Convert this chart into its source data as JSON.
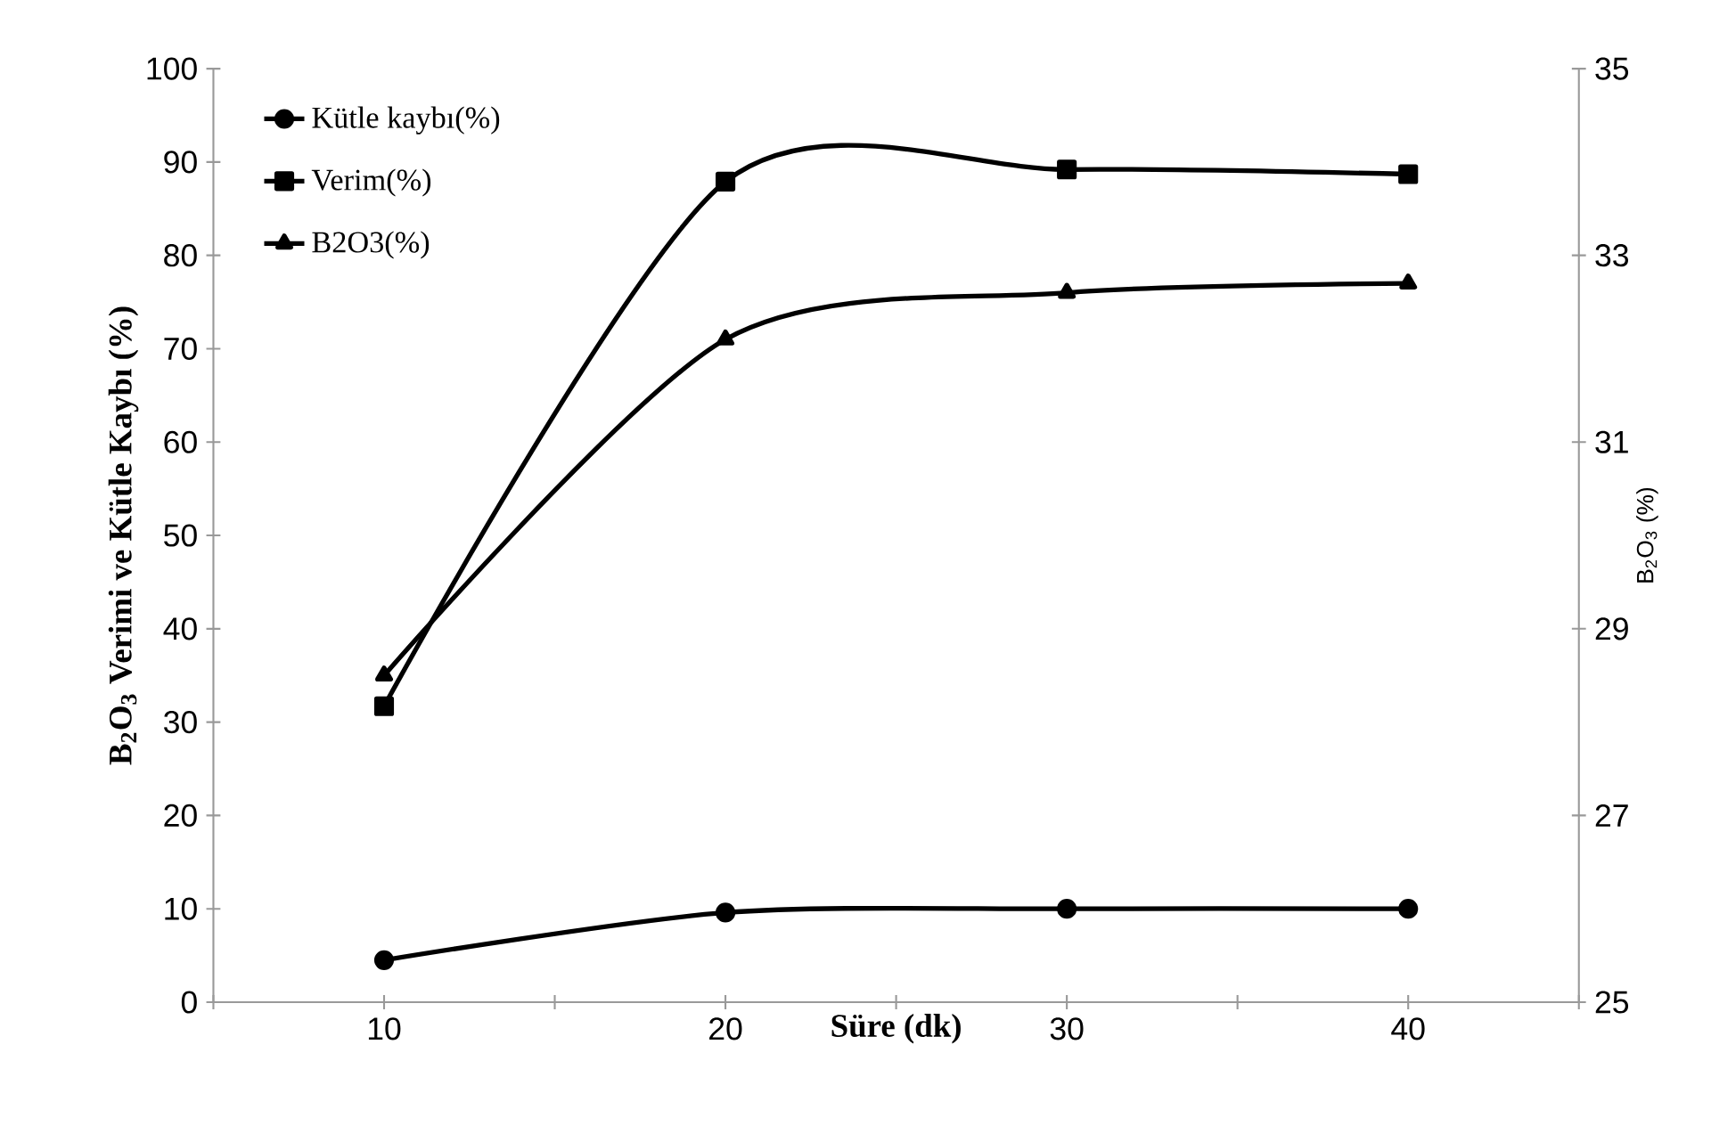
{
  "chart_data": {
    "type": "line",
    "xlabel": "Süre (dk)",
    "ylabel": "B$_{2}$O$_{3}$  Verimi ve Kütle Kaybı (%)",
    "y2label": "B$_{2}$O$_{3}$  (%)",
    "x": [
      10,
      20,
      30,
      40
    ],
    "xlim": [
      5,
      45
    ],
    "xticks": [
      {
        "value": 5,
        "label": null
      },
      10,
      {
        "value": 15,
        "label": null
      },
      20,
      {
        "value": 25,
        "label": null
      },
      30,
      {
        "value": 35,
        "label": null
      },
      40,
      {
        "value": 45,
        "label": null
      }
    ],
    "ylim": [
      0,
      100
    ],
    "yticks": [
      0,
      10,
      20,
      30,
      40,
      50,
      60,
      70,
      80,
      90,
      100
    ],
    "y2lim": [
      25,
      35
    ],
    "y2ticks": [
      25,
      27,
      29,
      31,
      33,
      35
    ],
    "series": [
      {
        "name": "Kütle kaybı(%)",
        "color": "#000000",
        "marker": "circle",
        "values": [
          4.5,
          9.6,
          10.0,
          10.0
        ]
      },
      {
        "name": "Verim(%)",
        "color": "#000000",
        "marker": "square",
        "values": [
          31.7,
          87.9,
          89.2,
          88.7
        ]
      },
      {
        "name": "B2O3(%)",
        "color": "#000000",
        "marker": "triangle",
        "axis": "y2",
        "values": [
          28.5,
          32.1,
          32.6,
          32.7
        ]
      }
    ],
    "grid": false,
    "legend": "top left",
    "line_style": "solid"
  }
}
